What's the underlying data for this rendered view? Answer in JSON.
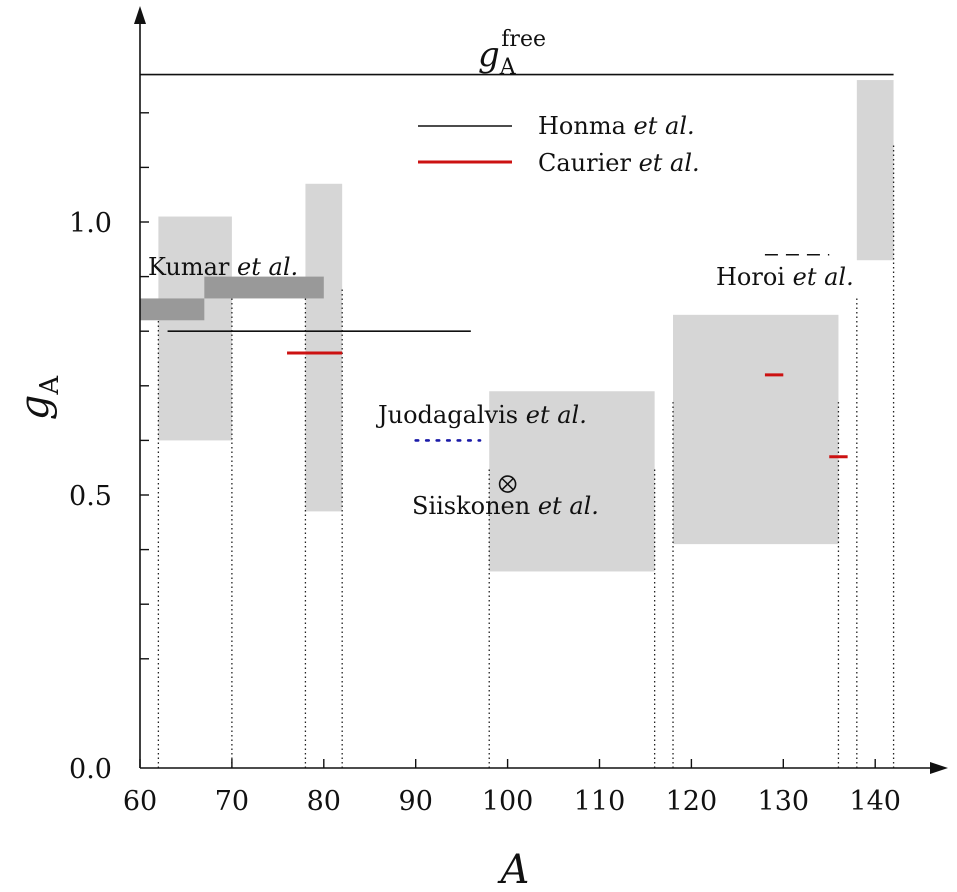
{
  "chart_data": {
    "type": "range-bands",
    "xlabel": "A",
    "ylabel_main": "g",
    "ylabel_sub": "A",
    "xlim": [
      60,
      145
    ],
    "ylim": [
      0,
      1.35
    ],
    "xticks": [
      60,
      70,
      80,
      90,
      100,
      110,
      120,
      130,
      140
    ],
    "yticks_labeled": [
      0.0,
      0.5,
      1.0
    ],
    "yticks_minor": [
      0.2,
      0.3,
      0.4,
      0.6,
      0.7,
      0.8,
      0.9,
      1.1,
      1.2
    ],
    "grid": false,
    "free_value": {
      "label_main": "g",
      "label_sub": "A",
      "label_sup": "free",
      "y": 1.27,
      "x_range": [
        60,
        142
      ]
    },
    "light_bands": [
      {
        "x": [
          62,
          70
        ],
        "y": [
          0.6,
          1.01
        ]
      },
      {
        "x": [
          78,
          82
        ],
        "y": [
          0.47,
          1.07
        ]
      },
      {
        "x": [
          98,
          116
        ],
        "y": [
          0.36,
          0.69
        ]
      },
      {
        "x": [
          118,
          136
        ],
        "y": [
          0.41,
          0.83
        ]
      },
      {
        "x": [
          138,
          142
        ],
        "y": [
          0.93,
          1.26
        ]
      }
    ],
    "dotted_verticals": [
      {
        "x": 62,
        "y_top": 0.82
      },
      {
        "x": 70,
        "y_top": 0.86
      },
      {
        "x": 78,
        "y_top": 0.88
      },
      {
        "x": 82,
        "y_top": 0.88
      },
      {
        "x": 98,
        "y_top": 0.55
      },
      {
        "x": 116,
        "y_top": 0.55
      },
      {
        "x": 118,
        "y_top": 0.67
      },
      {
        "x": 136,
        "y_top": 0.67
      },
      {
        "x": 138,
        "y_top": 0.86
      },
      {
        "x": 142,
        "y_top": 1.14
      }
    ],
    "kumar_bands": [
      {
        "x": [
          60,
          67
        ],
        "y": [
          0.82,
          0.86
        ]
      },
      {
        "x": [
          67,
          80
        ],
        "y": [
          0.86,
          0.9
        ]
      }
    ],
    "honma_lines": [
      {
        "x": [
          63,
          96
        ],
        "y": 0.8
      }
    ],
    "caurier_lines": [
      {
        "x": [
          76,
          82
        ],
        "y": 0.76
      },
      {
        "x": [
          128,
          130
        ],
        "y": 0.72
      },
      {
        "x": [
          135,
          137
        ],
        "y": 0.57
      }
    ],
    "horoi_line": {
      "x": [
        128,
        135
      ],
      "y": 0.94
    },
    "juodagalvis_line": {
      "x": [
        90,
        97
      ],
      "y": 0.6
    },
    "siiskonen_point": {
      "x": 100,
      "y": 0.52
    },
    "legend": {
      "placement": "top-center",
      "entries": [
        {
          "name": "Honma",
          "suffix": " et al.",
          "color": "#111111"
        },
        {
          "name": "Caurier",
          "suffix": " et al.",
          "color": "#cc1111"
        }
      ]
    },
    "annotations": [
      {
        "id": "kumar",
        "name": "Kumar",
        "suffix": " et al.",
        "color": "#111111"
      },
      {
        "id": "horoi",
        "name": "Horoi",
        "suffix": " et al.",
        "color": "#111111"
      },
      {
        "id": "juodagalvis",
        "name": "Juodagalvis",
        "suffix": " et al.",
        "color": "#1a1aa8"
      },
      {
        "id": "siiskonen",
        "name": "Siiskonen",
        "suffix": " et al.",
        "color": "#111111"
      }
    ],
    "colors": {
      "light_band": "#d6d6d6",
      "kumar_band": "#999999",
      "honma": "#111111",
      "caurier": "#cc1111",
      "juodagalvis": "#1a1aa8"
    }
  }
}
